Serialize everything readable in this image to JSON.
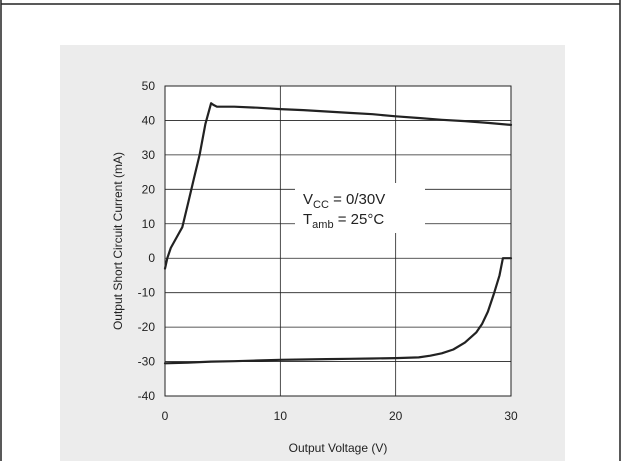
{
  "chart_data": {
    "type": "line",
    "title": "",
    "xlabel": "Output Voltage (V)",
    "ylabel": "Output Short Circuit Current (mA)",
    "xlim": [
      0,
      30
    ],
    "ylim": [
      -40,
      50
    ],
    "x_ticks": [
      "0",
      "10",
      "20",
      "30"
    ],
    "y_ticks": [
      "50",
      "40",
      "30",
      "20",
      "10",
      "0",
      "-10",
      "-20",
      "-30",
      "-40"
    ],
    "grid": true,
    "annotation": {
      "vcc_main": "V",
      "vcc_sub": "CC",
      "vcc_rest": " = 0/30V",
      "tamb_main": "T",
      "tamb_sub": "amb",
      "tamb_rest": " = 25°C"
    },
    "series": [
      {
        "color": "#222222",
        "x": [
          0,
          0.2,
          0.5,
          1.0,
          1.5,
          2.0,
          2.5,
          3.0,
          3.5,
          4.0,
          4.2,
          4.5,
          6,
          8,
          10,
          12,
          14,
          16,
          18,
          20,
          22,
          24,
          26,
          28,
          30
        ],
        "y": [
          -3,
          0,
          3,
          6,
          9,
          16,
          23,
          30,
          39,
          45,
          44.5,
          44,
          44,
          43.7,
          43.3,
          43,
          42.6,
          42.2,
          41.8,
          41.2,
          40.7,
          40.2,
          39.8,
          39.3,
          38.7
        ]
      },
      {
        "color": "#222222",
        "x": [
          0,
          2,
          4,
          6,
          8,
          10,
          12,
          14,
          16,
          18,
          20,
          22,
          23,
          24,
          25,
          26,
          27,
          27.5,
          28,
          28.5,
          29,
          29.3,
          29.6,
          30
        ],
        "y": [
          -30.5,
          -30.3,
          -30,
          -29.9,
          -29.7,
          -29.5,
          -29.4,
          -29.3,
          -29.2,
          -29.1,
          -29,
          -28.8,
          -28.3,
          -27.6,
          -26.5,
          -24.5,
          -21.5,
          -19,
          -15.5,
          -10.5,
          -5,
          0,
          0,
          0
        ]
      }
    ]
  }
}
